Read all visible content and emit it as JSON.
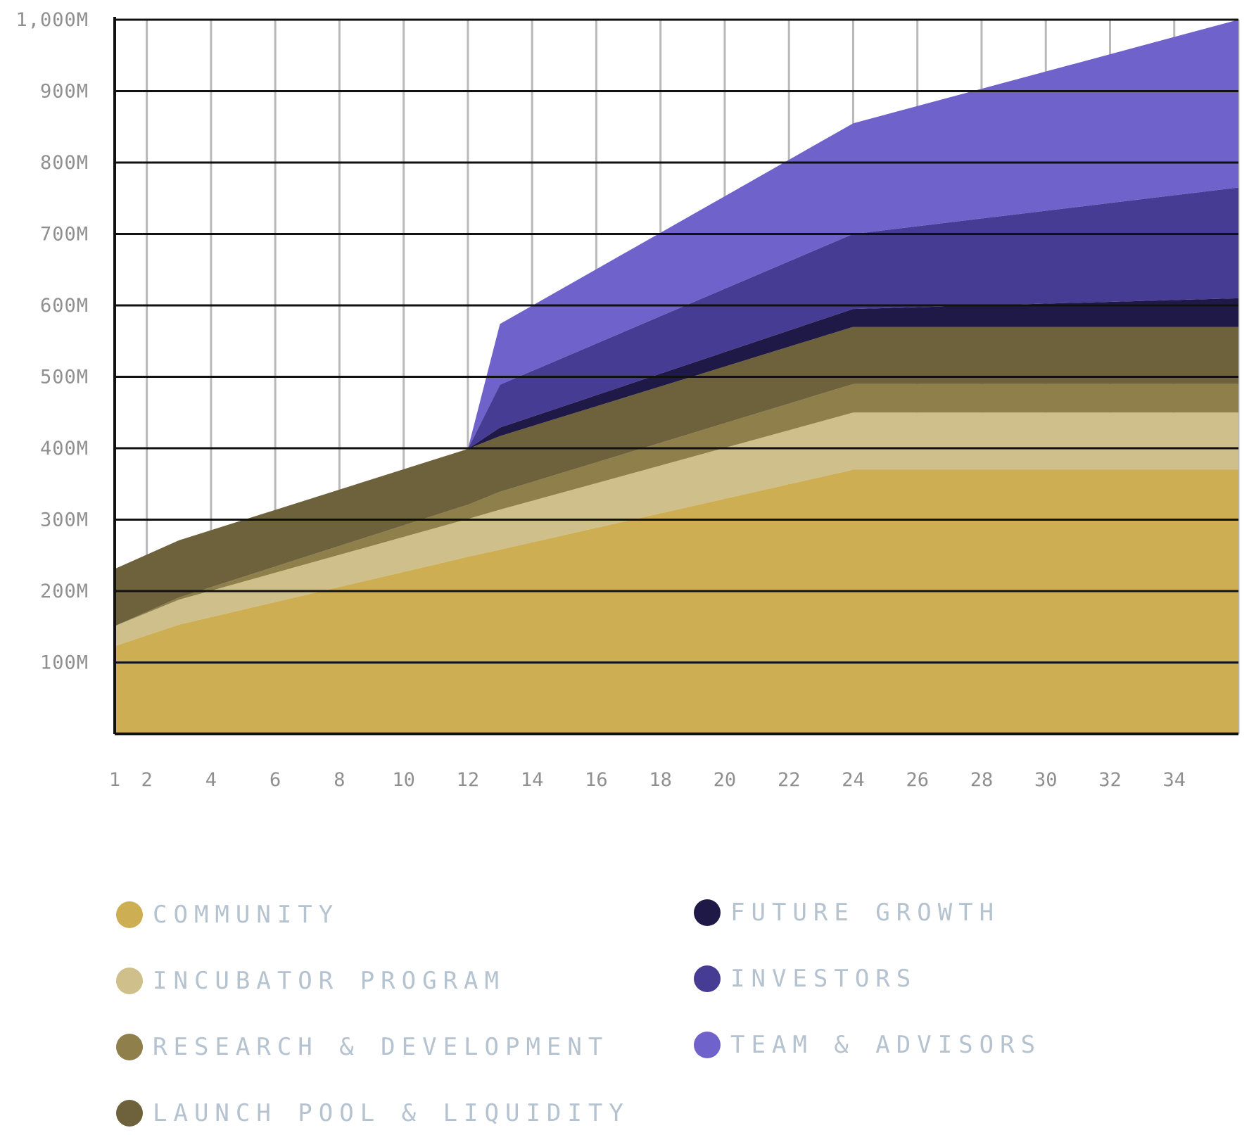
{
  "chart_data": {
    "type": "area",
    "stacked": true,
    "title": "",
    "xlabel": "",
    "ylabel": "",
    "x": [
      1,
      3,
      12,
      13,
      24,
      36
    ],
    "xticks": [
      "1",
      "2",
      "4",
      "6",
      "8",
      "10",
      "12",
      "14",
      "16",
      "18",
      "20",
      "22",
      "24",
      "26",
      "28",
      "30",
      "32",
      "34"
    ],
    "yticks": [
      "1,000M",
      "900M",
      "800M",
      "700M",
      "600M",
      "500M",
      "400M",
      "300M",
      "200M",
      "100M"
    ],
    "ylim": [
      0,
      1000
    ],
    "xlim": [
      1,
      36
    ],
    "grid": true,
    "legend_position": "bottom",
    "series": [
      {
        "name": "COMMUNITY",
        "color": "#cdae52",
        "values": [
          123,
          153,
          248,
          258,
          370,
          370
        ]
      },
      {
        "name": "INCUBATOR PROGRAM",
        "color": "#cfbf8a",
        "values": [
          28,
          35,
          53,
          56,
          80,
          80
        ]
      },
      {
        "name": "RESEARCH & DEVELOPMENT",
        "color": "#8e7f4b",
        "values": [
          0,
          3,
          20,
          25,
          40,
          40
        ]
      },
      {
        "name": "LAUNCH POOL & LIQUIDITY",
        "color": "#6e623d",
        "values": [
          80,
          80,
          78,
          78,
          80,
          80
        ]
      },
      {
        "name": "FUTURE GROWTH",
        "color": "#1e1947",
        "values": [
          0,
          0,
          0,
          12,
          25,
          40
        ]
      },
      {
        "name": "INVESTORS",
        "color": "#473c93",
        "values": [
          0,
          0,
          0,
          60,
          105,
          155
        ]
      },
      {
        "name": "TEAM & ADVISORS",
        "color": "#6f63cb",
        "values": [
          0,
          0,
          0,
          85,
          155,
          235
        ]
      }
    ]
  }
}
